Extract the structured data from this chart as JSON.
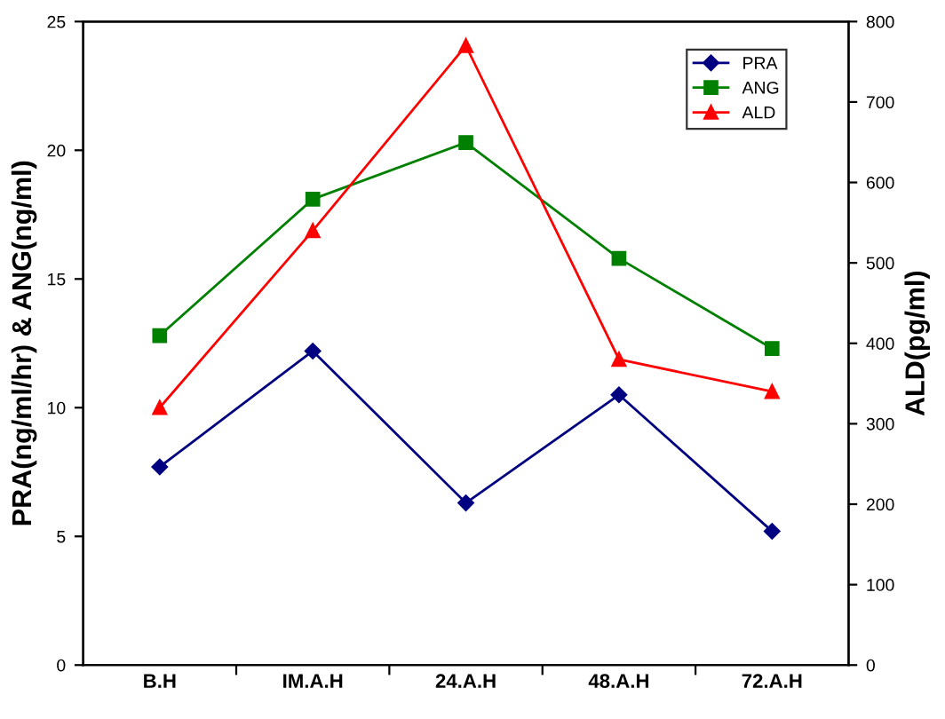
{
  "chart_data": {
    "type": "line",
    "categories": [
      "B.H",
      "IM.A.H",
      "24.A.H",
      "48.A.H",
      "72.A.H"
    ],
    "ylabel": "PRA(ng/ml/hr) & ANG(ng/ml)",
    "y2label": "ALD(pg/ml)",
    "ylim": [
      0,
      25
    ],
    "yticks": [
      0,
      5,
      10,
      15,
      20,
      25
    ],
    "y2lim": [
      0,
      800
    ],
    "y2ticks": [
      0,
      100,
      200,
      300,
      400,
      500,
      600,
      700,
      800
    ],
    "grid": false,
    "legend": "top right",
    "series": [
      {
        "name": "PRA",
        "color": "#000080",
        "marker": "diamond",
        "values": [
          7.7,
          12.2,
          6.3,
          10.5,
          5.2
        ]
      },
      {
        "name": "ANG",
        "color": "#008000",
        "marker": "square",
        "values": [
          12.8,
          18.1,
          20.3,
          15.8,
          12.3
        ]
      },
      {
        "name": "ALD",
        "color": "#ff0000",
        "marker": "triangle",
        "axis": "y2",
        "values": [
          320,
          540,
          770,
          380,
          340
        ]
      }
    ]
  }
}
